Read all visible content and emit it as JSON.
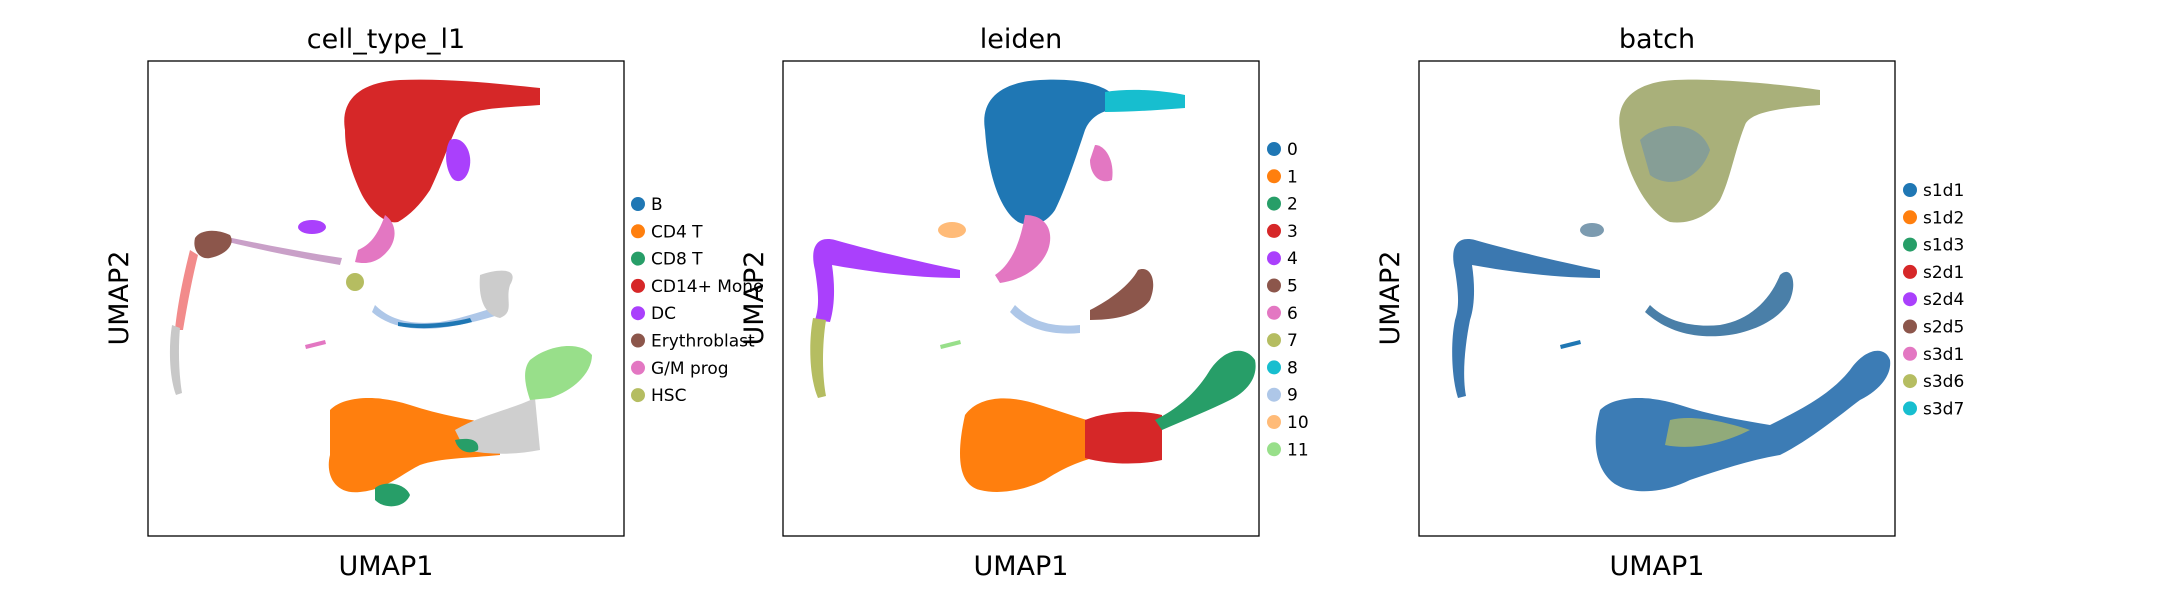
{
  "chart_data": [
    {
      "type": "scatter",
      "title": "cell_type_l1",
      "xlabel": "UMAP1",
      "ylabel": "UMAP2",
      "grid": false,
      "ticks": "hidden",
      "legend_position": "right",
      "legend": [
        {
          "name": "B",
          "color": "#1f77b4"
        },
        {
          "name": "CD4 T",
          "color": "#ff7f0e"
        },
        {
          "name": "CD8 T",
          "color": "#279e68"
        },
        {
          "name": "CD14+ Mono",
          "color": "#d62728"
        },
        {
          "name": "DC",
          "color": "#aa40fc"
        },
        {
          "name": "Erythroblast",
          "color": "#8c564b"
        },
        {
          "name": "G/M prog",
          "color": "#e377c2"
        },
        {
          "name": "HSC",
          "color": "#b5bd61"
        }
      ]
    },
    {
      "type": "scatter",
      "title": "leiden",
      "xlabel": "UMAP1",
      "ylabel": "UMAP2",
      "grid": false,
      "ticks": "hidden",
      "legend_position": "right",
      "legend": [
        {
          "name": "0",
          "color": "#1f77b4"
        },
        {
          "name": "1",
          "color": "#ff7f0e"
        },
        {
          "name": "2",
          "color": "#279e68"
        },
        {
          "name": "3",
          "color": "#d62728"
        },
        {
          "name": "4",
          "color": "#aa40fc"
        },
        {
          "name": "5",
          "color": "#8c564b"
        },
        {
          "name": "6",
          "color": "#e377c2"
        },
        {
          "name": "7",
          "color": "#b5bd61"
        },
        {
          "name": "8",
          "color": "#17becf"
        },
        {
          "name": "9",
          "color": "#aec7e8"
        },
        {
          "name": "10",
          "color": "#ffbb78"
        },
        {
          "name": "11",
          "color": "#98df8a"
        }
      ]
    },
    {
      "type": "scatter",
      "title": "batch",
      "xlabel": "UMAP1",
      "ylabel": "UMAP2",
      "grid": false,
      "ticks": "hidden",
      "legend_position": "right",
      "legend": [
        {
          "name": "s1d1",
          "color": "#1f77b4"
        },
        {
          "name": "s1d2",
          "color": "#ff7f0e"
        },
        {
          "name": "s1d3",
          "color": "#279e68"
        },
        {
          "name": "s2d1",
          "color": "#d62728"
        },
        {
          "name": "s2d4",
          "color": "#aa40fc"
        },
        {
          "name": "s2d5",
          "color": "#8c564b"
        },
        {
          "name": "s3d1",
          "color": "#e377c2"
        },
        {
          "name": "s3d6",
          "color": "#b5bd61"
        },
        {
          "name": "s3d7",
          "color": "#17becf"
        }
      ]
    }
  ]
}
